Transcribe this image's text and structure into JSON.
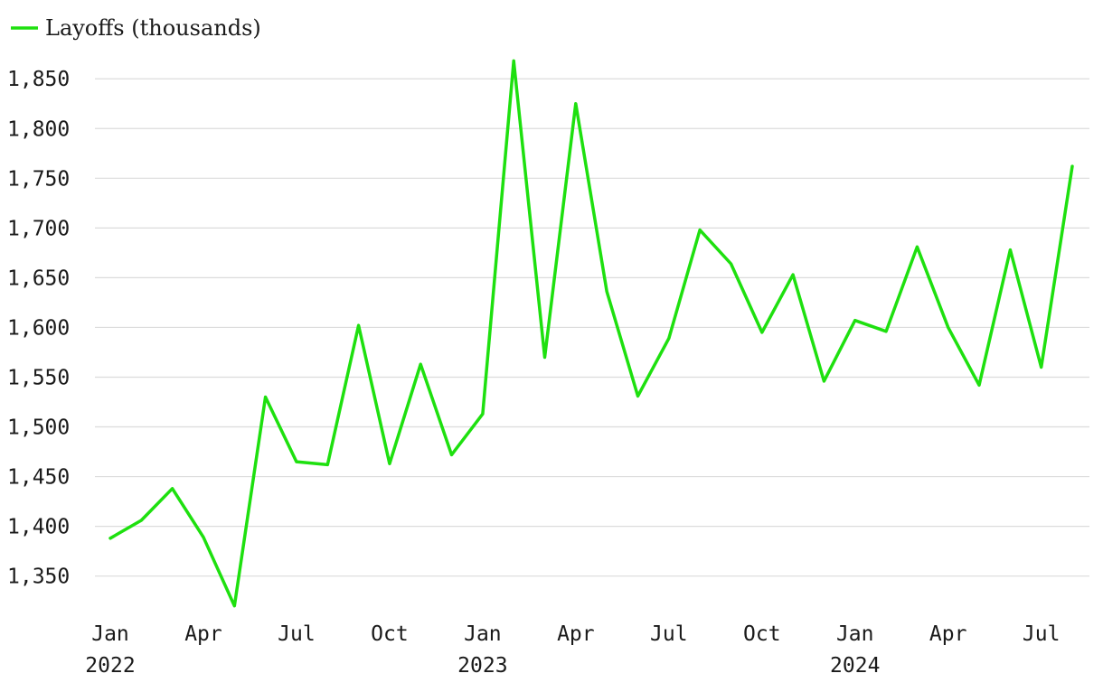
{
  "chart_data": {
    "type": "line",
    "title": "",
    "xlabel": "",
    "ylabel": "",
    "legend_position": "top-left",
    "grid": true,
    "series": [
      {
        "name": "Layoffs (thousands)",
        "color": "#1ee00f",
        "x": [
          "2022-01",
          "2022-02",
          "2022-03",
          "2022-04",
          "2022-05",
          "2022-06",
          "2022-07",
          "2022-08",
          "2022-09",
          "2022-10",
          "2022-11",
          "2022-12",
          "2023-01",
          "2023-02",
          "2023-03",
          "2023-04",
          "2023-05",
          "2023-06",
          "2023-07",
          "2023-08",
          "2023-09",
          "2023-10",
          "2023-11",
          "2023-12",
          "2024-01",
          "2024-02",
          "2024-03",
          "2024-04",
          "2024-05",
          "2024-06",
          "2024-07",
          "2024-08"
        ],
        "values": [
          1388,
          1406,
          1438,
          1389,
          1320,
          1530,
          1465,
          1462,
          1602,
          1463,
          1563,
          1472,
          1513,
          1868,
          1570,
          1825,
          1636,
          1531,
          1589,
          1698,
          1664,
          1595,
          1653,
          1546,
          1607,
          1596,
          1681,
          1600,
          1542,
          1678,
          1560,
          1762
        ]
      }
    ],
    "ylim": [
      1317,
      1872
    ],
    "y_ticks": [
      1350,
      1400,
      1450,
      1500,
      1550,
      1600,
      1650,
      1700,
      1750,
      1800,
      1850
    ],
    "y_tick_labels": [
      "1,350",
      "1,400",
      "1,450",
      "1,500",
      "1,550",
      "1,600",
      "1,650",
      "1,700",
      "1,750",
      "1,800",
      "1,850"
    ],
    "x_ticks": [
      {
        "index": 0,
        "month": "Jan",
        "year": "2022"
      },
      {
        "index": 3,
        "month": "Apr",
        "year": ""
      },
      {
        "index": 6,
        "month": "Jul",
        "year": ""
      },
      {
        "index": 9,
        "month": "Oct",
        "year": ""
      },
      {
        "index": 12,
        "month": "Jan",
        "year": "2023"
      },
      {
        "index": 15,
        "month": "Apr",
        "year": ""
      },
      {
        "index": 18,
        "month": "Jul",
        "year": ""
      },
      {
        "index": 21,
        "month": "Oct",
        "year": ""
      },
      {
        "index": 24,
        "month": "Jan",
        "year": "2024"
      },
      {
        "index": 27,
        "month": "Apr",
        "year": ""
      },
      {
        "index": 30,
        "month": "Jul",
        "year": ""
      }
    ]
  }
}
